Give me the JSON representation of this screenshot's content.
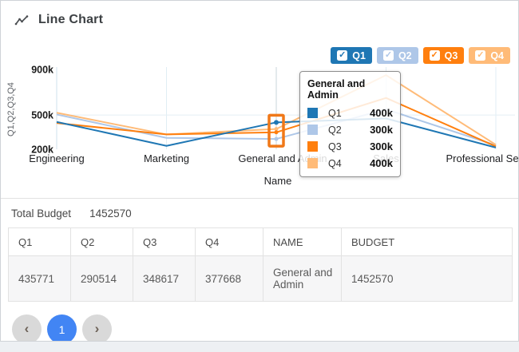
{
  "header": {
    "title": "Line Chart"
  },
  "legend": {
    "items": [
      {
        "label": "Q1",
        "color": "#1f77b4",
        "checked": true
      },
      {
        "label": "Q2",
        "color": "#aec7e8",
        "checked": true
      },
      {
        "label": "Q3",
        "color": "#ff7f0e",
        "checked": true
      },
      {
        "label": "Q4",
        "color": "#ffbb78",
        "checked": true
      }
    ],
    "check_icon": "✓"
  },
  "chart_data": {
    "type": "line",
    "title": "Line Chart",
    "categories": [
      "Engineering",
      "Marketing",
      "General and Admin",
      "Sales",
      "Professional Services"
    ],
    "series": [
      {
        "name": "Q1",
        "color": "#1f77b4",
        "values": [
          440000,
          230000,
          435771,
          470000,
          215000
        ]
      },
      {
        "name": "Q2",
        "color": "#aec7e8",
        "values": [
          505000,
          300000,
          290514,
          550000,
          235000
        ]
      },
      {
        "name": "Q3",
        "color": "#ff7f0e",
        "values": [
          430000,
          330000,
          348617,
          650000,
          225000
        ]
      },
      {
        "name": "Q4",
        "color": "#ffbb78",
        "values": [
          520000,
          330000,
          377668,
          850000,
          240000
        ]
      }
    ],
    "xlabel": "Name",
    "ylabel": "Q1,Q2,Q3,Q4",
    "yticks": [
      {
        "label": "900k",
        "value": 900000
      },
      {
        "label": "500k",
        "value": 500000
      },
      {
        "label": "200k",
        "value": 200000
      }
    ],
    "ylim": [
      200000,
      900000
    ],
    "grid": true,
    "legend_position": "top-right",
    "hover_index": 2,
    "hover_highlight_color": "#f07818"
  },
  "tooltip": {
    "title": "General and Admin",
    "rows": [
      {
        "label": "Q1",
        "value": "400k",
        "color": "#1f77b4"
      },
      {
        "label": "Q2",
        "value": "300k",
        "color": "#aec7e8"
      },
      {
        "label": "Q3",
        "value": "300k",
        "color": "#ff7f0e"
      },
      {
        "label": "Q4",
        "value": "400k",
        "color": "#ffbb78"
      }
    ]
  },
  "summary": {
    "label": "Total Budget",
    "value": "1452570"
  },
  "table": {
    "columns": [
      "Q1",
      "Q2",
      "Q3",
      "Q4",
      "NAME",
      "BUDGET"
    ],
    "rows": [
      [
        "435771",
        "290514",
        "348617",
        "377668",
        "General and Admin",
        "1452570"
      ]
    ]
  },
  "pagination": {
    "prev_icon": "‹",
    "next_icon": "›",
    "current_page": "1"
  }
}
